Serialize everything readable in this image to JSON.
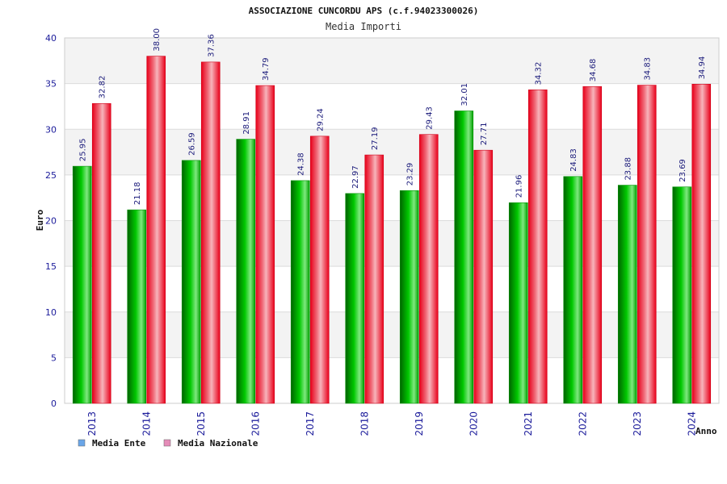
{
  "chart_data": {
    "type": "bar",
    "title": "ASSOCIAZIONE CUNCORDU APS (c.f.94023300026)",
    "subtitle": "Media Importi",
    "xlabel": "Anno",
    "ylabel": "Euro",
    "ylim": [
      0,
      40
    ],
    "yticks": [
      "0",
      "5",
      "10",
      "15",
      "20",
      "25",
      "30",
      "35",
      "40"
    ],
    "grid": true,
    "legend_position": "bottom-left",
    "categories": [
      "2013",
      "2014",
      "2015",
      "2016",
      "2017",
      "2018",
      "2019",
      "2020",
      "2021",
      "2022",
      "2023",
      "2024"
    ],
    "series": [
      {
        "name": "Media Ente",
        "legend_color": "#6aa6e8",
        "color": "#00b000",
        "values": [
          25.95,
          21.18,
          26.59,
          28.91,
          24.38,
          22.97,
          23.29,
          32.01,
          21.96,
          24.83,
          23.88,
          23.69
        ],
        "labels": [
          "25.95",
          "21.18",
          "26.59",
          "28.91",
          "24.38",
          "22.97",
          "23.29",
          "32.01",
          "21.96",
          "24.83",
          "23.88",
          "23.69"
        ]
      },
      {
        "name": "Media Nazionale",
        "legend_color": "#e58cb8",
        "color": "#ee1122",
        "values": [
          32.82,
          38.0,
          37.36,
          34.79,
          29.24,
          27.19,
          29.43,
          27.71,
          34.32,
          34.68,
          34.83,
          34.94
        ],
        "labels": [
          "32.82",
          "38.00",
          "37.36",
          "34.79",
          "29.24",
          "27.19",
          "29.43",
          "27.71",
          "34.32",
          "34.68",
          "34.83",
          "34.94"
        ]
      }
    ]
  }
}
